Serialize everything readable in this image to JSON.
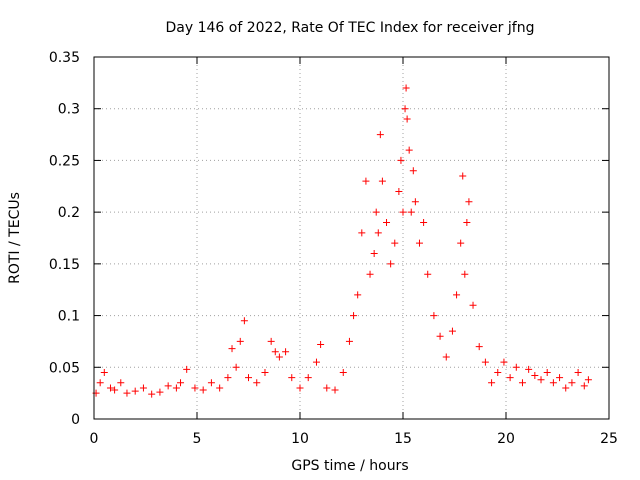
{
  "chart_data": {
    "type": "scatter",
    "title": "Day 146 of 2022, Rate Of TEC Index for receiver jfng",
    "xlabel": "GPS time / hours",
    "ylabel": "ROTI / TECUs",
    "xlim": [
      0,
      25
    ],
    "ylim": [
      0,
      0.35
    ],
    "xticks": [
      0,
      5,
      10,
      15,
      20,
      25
    ],
    "xtick_labels": [
      "0",
      "5",
      "10",
      "15",
      "20",
      "25"
    ],
    "yticks": [
      0,
      0.05,
      0.1,
      0.15,
      0.2,
      0.25,
      0.3,
      0.35
    ],
    "ytick_labels": [
      "0",
      "0.05",
      "0.1",
      "0.15",
      "0.2",
      "0.25",
      "0.3",
      "0.35"
    ],
    "grid": true,
    "marker": "+",
    "color": "#ff0000",
    "series": [
      {
        "name": "ROTI",
        "x": [
          0.1,
          0.3,
          0.5,
          0.8,
          1.0,
          1.3,
          1.6,
          2.0,
          2.4,
          2.8,
          3.2,
          3.6,
          4.0,
          4.2,
          4.5,
          4.9,
          5.3,
          5.7,
          6.1,
          6.5,
          6.7,
          6.9,
          7.1,
          7.3,
          7.5,
          7.9,
          8.3,
          8.6,
          8.8,
          9.0,
          9.3,
          9.6,
          10.0,
          10.4,
          10.8,
          11.0,
          11.3,
          11.7,
          12.1,
          12.4,
          12.6,
          12.8,
          13.0,
          13.2,
          13.4,
          13.6,
          13.7,
          13.8,
          13.9,
          14.0,
          14.2,
          14.4,
          14.6,
          14.8,
          14.9,
          15.0,
          15.1,
          15.15,
          15.2,
          15.3,
          15.4,
          15.5,
          15.6,
          15.8,
          16.0,
          16.2,
          16.5,
          16.8,
          17.1,
          17.4,
          17.6,
          17.8,
          17.9,
          18.0,
          18.1,
          18.2,
          18.4,
          18.7,
          19.0,
          19.3,
          19.6,
          19.9,
          20.2,
          20.5,
          20.8,
          21.1,
          21.4,
          21.7,
          22.0,
          22.3,
          22.6,
          22.9,
          23.2,
          23.5,
          23.8,
          24.0
        ],
        "y": [
          0.025,
          0.035,
          0.045,
          0.03,
          0.028,
          0.035,
          0.025,
          0.027,
          0.03,
          0.024,
          0.026,
          0.032,
          0.03,
          0.035,
          0.048,
          0.03,
          0.028,
          0.035,
          0.03,
          0.04,
          0.068,
          0.05,
          0.075,
          0.095,
          0.04,
          0.035,
          0.045,
          0.075,
          0.065,
          0.06,
          0.065,
          0.04,
          0.03,
          0.04,
          0.055,
          0.072,
          0.03,
          0.028,
          0.045,
          0.075,
          0.1,
          0.12,
          0.18,
          0.23,
          0.14,
          0.16,
          0.2,
          0.18,
          0.275,
          0.23,
          0.19,
          0.15,
          0.17,
          0.22,
          0.25,
          0.2,
          0.3,
          0.32,
          0.29,
          0.26,
          0.2,
          0.24,
          0.21,
          0.17,
          0.19,
          0.14,
          0.1,
          0.08,
          0.06,
          0.085,
          0.12,
          0.17,
          0.235,
          0.14,
          0.19,
          0.21,
          0.11,
          0.07,
          0.055,
          0.035,
          0.045,
          0.055,
          0.04,
          0.05,
          0.035,
          0.048,
          0.042,
          0.038,
          0.045,
          0.035,
          0.04,
          0.03,
          0.035,
          0.045,
          0.032,
          0.038
        ]
      }
    ]
  }
}
